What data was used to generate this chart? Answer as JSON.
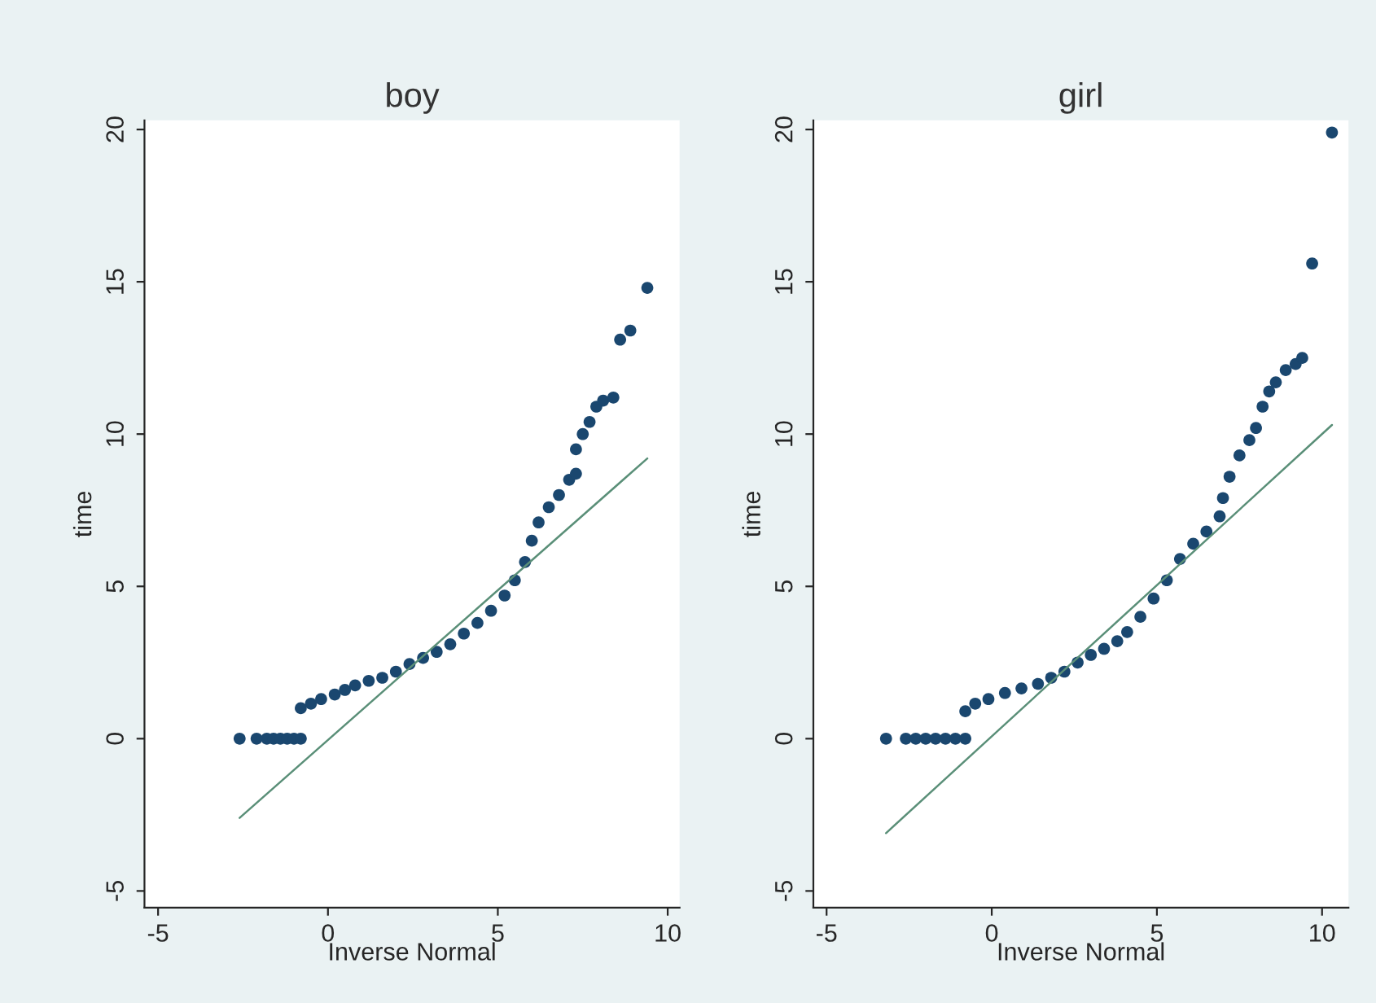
{
  "chart_data": [
    {
      "type": "scatter",
      "title": "boy",
      "xlabel": "Inverse Normal",
      "ylabel": "time",
      "xlim": [
        -5.4,
        10.35
      ],
      "ylim": [
        -5.55,
        20.3
      ],
      "xticks": [
        -5,
        0,
        5,
        10
      ],
      "yticks": [
        -5,
        0,
        5,
        10,
        15,
        20
      ],
      "grid": false,
      "series": [
        {
          "marker": "circle",
          "color": "#1a476f",
          "x": [
            -2.6,
            -2.1,
            -1.8,
            -1.6,
            -1.4,
            -1.2,
            -1.0,
            -0.8,
            -0.8,
            -0.5,
            -0.2,
            0.2,
            0.5,
            0.8,
            1.2,
            1.6,
            2.0,
            2.4,
            2.8,
            3.2,
            3.6,
            4.0,
            4.4,
            4.8,
            5.2,
            5.5,
            5.8,
            6.0,
            6.2,
            6.5,
            6.8,
            7.1,
            7.3,
            7.3,
            7.5,
            7.7,
            7.9,
            8.1,
            8.4,
            8.6,
            8.9,
            9.4
          ],
          "values": [
            0,
            0,
            0,
            0,
            0,
            0,
            0,
            0,
            1.0,
            1.15,
            1.3,
            1.45,
            1.6,
            1.75,
            1.9,
            2.0,
            2.2,
            2.45,
            2.65,
            2.85,
            3.1,
            3.45,
            3.8,
            4.2,
            4.7,
            5.2,
            5.8,
            6.5,
            7.1,
            7.6,
            8.0,
            8.5,
            8.7,
            9.5,
            10.0,
            10.4,
            10.9,
            11.1,
            11.2,
            13.1,
            13.4,
            14.8
          ]
        },
        {
          "type": "line",
          "marker": "none",
          "color": "#5a8f78",
          "x": [
            -2.6,
            9.4
          ],
          "values": [
            -2.6,
            9.2
          ]
        }
      ]
    },
    {
      "type": "scatter",
      "title": "girl",
      "xlabel": "Inverse Normal",
      "ylabel": "time",
      "xlim": [
        -5.4,
        10.8
      ],
      "ylim": [
        -5.55,
        20.3
      ],
      "xticks": [
        -5,
        0,
        5,
        10
      ],
      "yticks": [
        -5,
        0,
        5,
        10,
        15,
        20
      ],
      "grid": false,
      "series": [
        {
          "marker": "circle",
          "color": "#1a476f",
          "x": [
            -3.2,
            -2.6,
            -2.3,
            -2.0,
            -1.7,
            -1.4,
            -1.1,
            -0.8,
            -0.8,
            -0.5,
            -0.1,
            0.4,
            0.9,
            1.4,
            1.8,
            2.2,
            2.6,
            3.0,
            3.4,
            3.8,
            4.1,
            4.5,
            4.9,
            5.3,
            5.7,
            6.1,
            6.5,
            6.9,
            7.0,
            7.2,
            7.5,
            7.8,
            8.0,
            8.2,
            8.4,
            8.6,
            8.9,
            9.2,
            9.4,
            9.7,
            10.3
          ],
          "values": [
            0,
            0,
            0,
            0,
            0,
            0,
            0,
            0,
            0.9,
            1.15,
            1.3,
            1.5,
            1.65,
            1.8,
            2.0,
            2.2,
            2.5,
            2.75,
            2.95,
            3.2,
            3.5,
            4.0,
            4.6,
            5.2,
            5.9,
            6.4,
            6.8,
            7.3,
            7.9,
            8.6,
            9.3,
            9.8,
            10.2,
            10.9,
            11.4,
            11.7,
            12.1,
            12.3,
            12.5,
            15.6,
            19.9
          ]
        },
        {
          "type": "line",
          "marker": "none",
          "color": "#5a8f78",
          "x": [
            -3.2,
            10.3
          ],
          "values": [
            -3.1,
            10.3
          ]
        }
      ]
    }
  ]
}
